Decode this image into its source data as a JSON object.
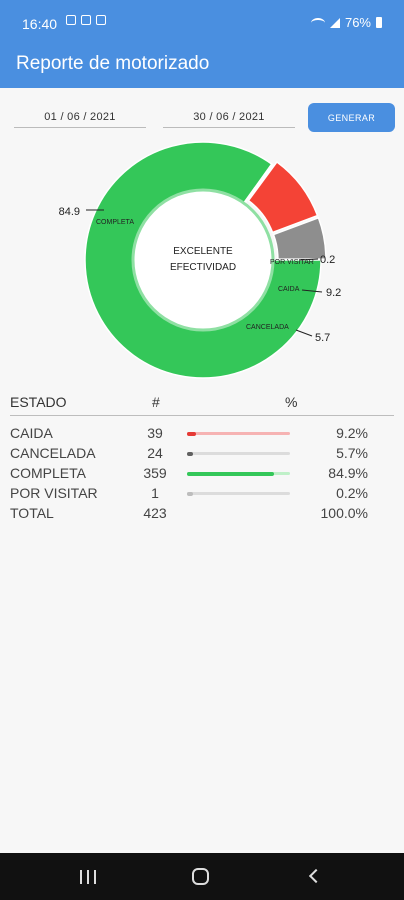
{
  "status_bar": {
    "time": "16:40",
    "battery": "76%"
  },
  "app_bar": {
    "title": "Reporte de motorizado"
  },
  "filters": {
    "date_from": "01 / 06 / 2021",
    "date_to": "30 / 06 / 2021",
    "generate_label": "GENERAR"
  },
  "chart_data": {
    "type": "pie",
    "center_label_line1": "EXCELENTE",
    "center_label_line2": "EFECTIVIDAD",
    "slices": [
      {
        "label": "COMPLETA",
        "value": 84.9,
        "value_label": "84.9",
        "color": "#34c759"
      },
      {
        "label": "POR VISITAR",
        "value": 0.2,
        "value_label": "0.2",
        "color": "#4caf50"
      },
      {
        "label": "CAIDA",
        "value": 9.2,
        "value_label": "9.2",
        "color": "#f44336"
      },
      {
        "label": "CANCELADA",
        "value": 5.7,
        "value_label": "5.7",
        "color": "#8e8e8e"
      }
    ]
  },
  "table": {
    "headers": {
      "state": "ESTADO",
      "count": "#",
      "percent": "%"
    },
    "rows": [
      {
        "state": "CAIDA",
        "count": "39",
        "percent": "9.2%",
        "fraction": 0.092,
        "color": "#e53935",
        "track": "#f6b3b3"
      },
      {
        "state": "CANCELADA",
        "count": "24",
        "percent": "5.7%",
        "fraction": 0.057,
        "color": "#616161",
        "track": "#dcdcdc"
      },
      {
        "state": "COMPLETA",
        "count": "359",
        "percent": "84.9%",
        "fraction": 0.849,
        "color": "#34c759",
        "track": "#bff0c8"
      },
      {
        "state": "POR VISITAR",
        "count": "1",
        "percent": "0.2%",
        "fraction": 0.002,
        "color": "#bdbdbd",
        "track": "#dcdcdc"
      }
    ],
    "total": {
      "state": "TOTAL",
      "count": "423",
      "percent": "100.0%"
    }
  }
}
